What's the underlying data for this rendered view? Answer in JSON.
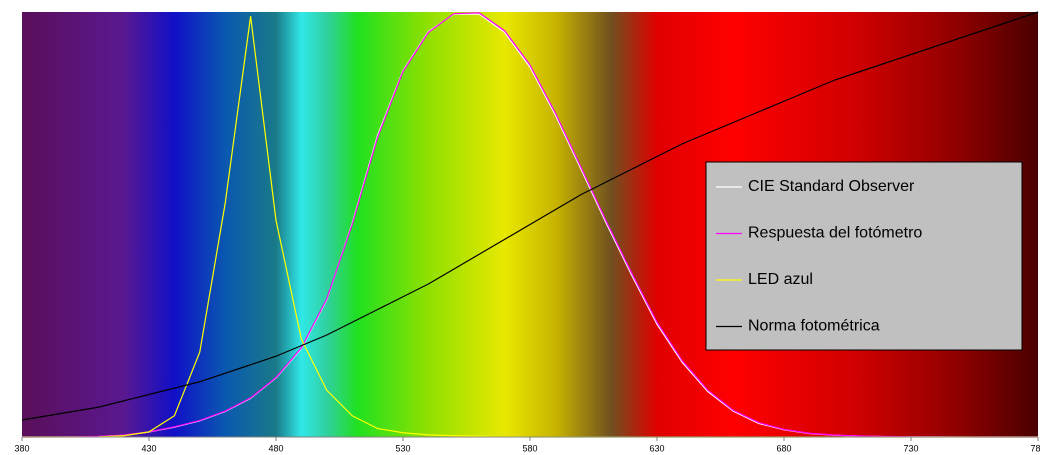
{
  "chart_data": {
    "type": "line",
    "x": [
      380,
      390,
      400,
      410,
      420,
      430,
      440,
      450,
      460,
      470,
      480,
      490,
      500,
      510,
      520,
      530,
      540,
      550,
      560,
      570,
      580,
      590,
      600,
      610,
      620,
      630,
      640,
      650,
      660,
      670,
      680,
      690,
      700,
      710,
      720,
      730,
      740,
      750,
      760,
      770,
      780
    ],
    "series": [
      {
        "name": "CIE Standard Observer",
        "color": "#ffffff",
        "values": [
          4e-05,
          0.00012,
          0.0004,
          0.0012,
          0.004,
          0.0116,
          0.023,
          0.038,
          0.06,
          0.091,
          0.139,
          0.208,
          0.323,
          0.503,
          0.71,
          0.862,
          0.954,
          0.995,
          0.995,
          0.952,
          0.87,
          0.757,
          0.631,
          0.503,
          0.381,
          0.265,
          0.175,
          0.107,
          0.061,
          0.032,
          0.017,
          0.0082,
          0.0041,
          0.0021,
          0.00105,
          0.00052,
          0.00025,
          0.00012,
          6e-05,
          3e-05,
          1.5e-05
        ]
      },
      {
        "name": "Respuesta del fotómetro",
        "color": "#ff00ff",
        "values": [
          5e-05,
          0.00015,
          0.0005,
          0.0014,
          0.0045,
          0.012,
          0.024,
          0.039,
          0.061,
          0.092,
          0.14,
          0.21,
          0.325,
          0.5,
          0.705,
          0.86,
          0.952,
          0.996,
          0.998,
          0.956,
          0.875,
          0.762,
          0.636,
          0.508,
          0.386,
          0.27,
          0.179,
          0.11,
          0.063,
          0.034,
          0.018,
          0.0088,
          0.0044,
          0.0023,
          0.0012,
          0.0006,
          0.0003,
          0.00015,
          8e-05,
          4e-05,
          2e-05
        ]
      },
      {
        "name": "LED azul",
        "color": "#ffff00",
        "values": [
          0,
          0,
          0,
          0.0005,
          0.003,
          0.012,
          0.05,
          0.2,
          0.55,
          0.99,
          0.51,
          0.23,
          0.11,
          0.05,
          0.02,
          0.01,
          0.005,
          0.003,
          0.002,
          0.001,
          0,
          0,
          0,
          0,
          0,
          0,
          0,
          0,
          0,
          0,
          0,
          0,
          0,
          0,
          0,
          0,
          0,
          0,
          0,
          0,
          0
        ]
      },
      {
        "name": "Norma fotométrica",
        "color": "#000000",
        "values": [
          0.04,
          0.05,
          0.06,
          0.07,
          0.085,
          0.1,
          0.115,
          0.13,
          0.15,
          0.17,
          0.19,
          0.215,
          0.24,
          0.27,
          0.3,
          0.33,
          0.36,
          0.395,
          0.43,
          0.465,
          0.5,
          0.535,
          0.57,
          0.6,
          0.63,
          0.66,
          0.69,
          0.715,
          0.74,
          0.765,
          0.79,
          0.815,
          0.84,
          0.86,
          0.88,
          0.9,
          0.92,
          0.94,
          0.96,
          0.98,
          1.0
        ]
      }
    ],
    "xlim": [
      380,
      780
    ],
    "xticks": [
      380,
      430,
      480,
      530,
      580,
      630,
      680,
      730,
      780
    ],
    "ylim": [
      0,
      1
    ],
    "legend": "right"
  }
}
